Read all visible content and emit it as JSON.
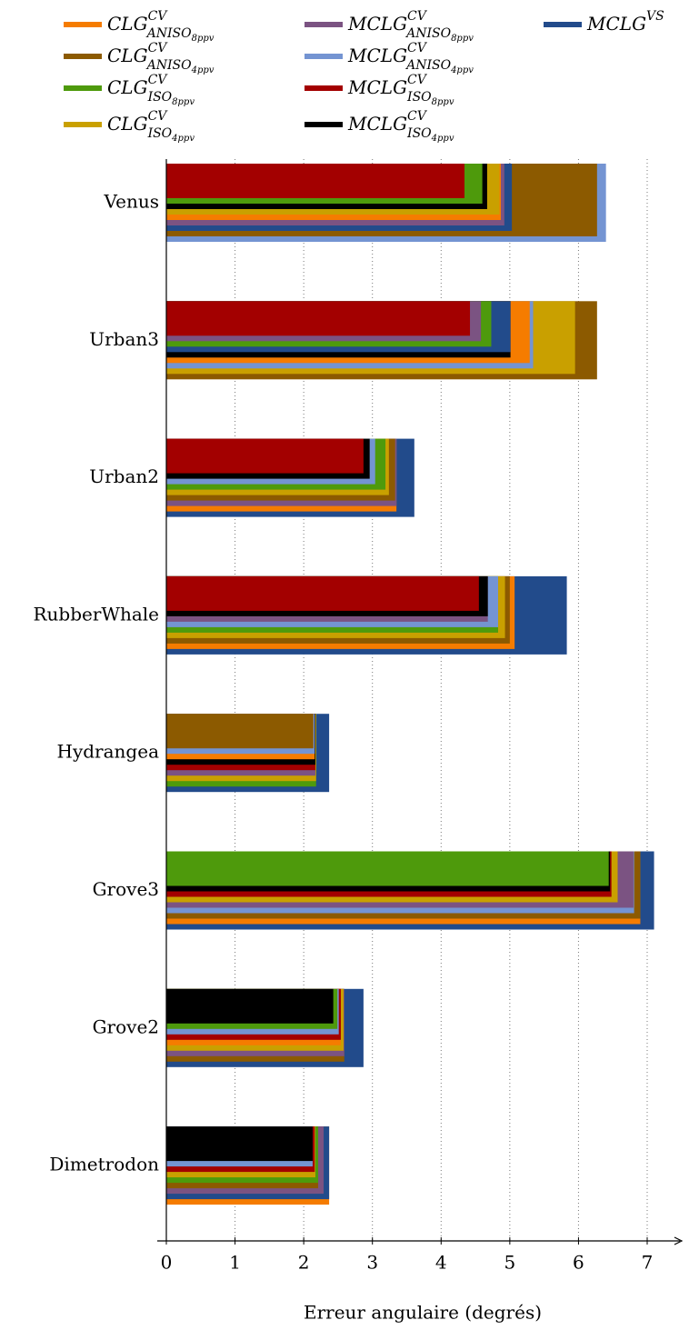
{
  "chart_data": {
    "type": "bar",
    "orientation": "horizontal",
    "x_label": "Erreur angulaire (degrés)",
    "categories": [
      "Venus",
      "Urban3",
      "Urban2",
      "RubberWhale",
      "Hydrangea",
      "Grove3",
      "Grove2",
      "Dimetrodon"
    ],
    "series": [
      {
        "name": "CLG",
        "sup": "CV",
        "sub": "ANISO",
        "subsub": "8ppv",
        "color": "#f57c00",
        "values": [
          4.87,
          5.29,
          3.35,
          5.07,
          2.16,
          6.9,
          2.54,
          2.37
        ]
      },
      {
        "name": "CLG",
        "sup": "CV",
        "sub": "ANISO",
        "subsub": "4ppv",
        "color": "#8c5a00",
        "values": [
          6.27,
          6.27,
          3.33,
          5.0,
          2.14,
          6.9,
          2.59,
          2.21
        ]
      },
      {
        "name": "CLG",
        "sup": "CV",
        "sub": "ISO",
        "subsub": "8ppv",
        "color": "#4e9a0c",
        "values": [
          4.6,
          4.73,
          3.19,
          4.83,
          2.18,
          6.44,
          2.49,
          2.21
        ]
      },
      {
        "name": "CLG",
        "sup": "CV",
        "sub": "ISO",
        "subsub": "4ppv",
        "color": "#c9a000",
        "values": [
          4.85,
          5.95,
          3.24,
          4.93,
          2.18,
          6.57,
          2.58,
          2.17
        ]
      },
      {
        "name": "MCLG",
        "sup": "CV",
        "sub": "ANISO",
        "subsub": "8ppv",
        "color": "#7b5382",
        "values": [
          4.92,
          4.58,
          3.35,
          4.68,
          2.17,
          6.8,
          2.59,
          2.29
        ]
      },
      {
        "name": "MCLG",
        "sup": "CV",
        "sub": "ANISO",
        "subsub": "4ppv",
        "color": "#7494d2",
        "values": [
          6.4,
          5.34,
          3.04,
          4.83,
          2.16,
          6.81,
          2.51,
          2.13
        ]
      },
      {
        "name": "MCLG",
        "sup": "CV",
        "sub": "ISO",
        "subsub": "8ppv",
        "color": "#a30000",
        "values": [
          4.34,
          4.42,
          2.87,
          4.55,
          2.17,
          6.48,
          2.54,
          2.16
        ]
      },
      {
        "name": "MCLG",
        "sup": "CV",
        "sub": "ISO",
        "subsub": "4ppv",
        "color": "#000000",
        "values": [
          4.67,
          5.01,
          2.96,
          4.68,
          2.17,
          6.46,
          2.43,
          2.13
        ]
      },
      {
        "name": "MCLG",
        "sup": "VS",
        "color": "#224b8b",
        "values": [
          5.03,
          5.01,
          3.61,
          5.83,
          2.37,
          7.1,
          2.87,
          2.37
        ]
      }
    ],
    "xlim": [
      0,
      7.5
    ],
    "xticks": [
      0,
      1,
      2,
      3,
      4,
      5,
      6,
      7
    ],
    "grid": true
  }
}
